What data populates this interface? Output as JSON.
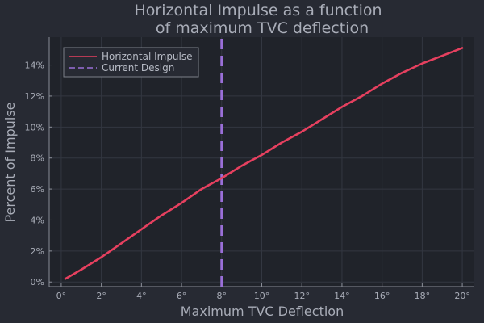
{
  "chart_data": {
    "type": "line",
    "title_lines": [
      "Horizontal Impulse as a function",
      "of maximum TVC deflection"
    ],
    "xlabel": "Maximum TVC Deflection",
    "ylabel": "Percent of Impulse",
    "xlim": [
      -0.6,
      20.6
    ],
    "ylim": [
      -0.3,
      15.8
    ],
    "xticks": [
      0,
      2,
      4,
      6,
      8,
      10,
      12,
      14,
      16,
      18,
      20
    ],
    "xtick_labels": [
      "0°",
      "2°",
      "4°",
      "6°",
      "8°",
      "10°",
      "12°",
      "14°",
      "16°",
      "18°",
      "20°"
    ],
    "yticks": [
      0,
      2,
      4,
      6,
      8,
      10,
      12,
      14
    ],
    "ytick_labels": [
      "0%",
      "2%",
      "4%",
      "6%",
      "8%",
      "10%",
      "12%",
      "14%"
    ],
    "grid": true,
    "legend_position": "top-left",
    "series": [
      {
        "name": "Horizontal Impulse",
        "style": "solid",
        "color": "#e6405f",
        "x": [
          0.2,
          1,
          2,
          3,
          4,
          5,
          6,
          7,
          8,
          9,
          10,
          11,
          12,
          13,
          14,
          15,
          16,
          17,
          18,
          19,
          20
        ],
        "y": [
          0.2,
          0.8,
          1.6,
          2.5,
          3.4,
          4.3,
          5.1,
          6.0,
          6.7,
          7.5,
          8.2,
          9.0,
          9.7,
          10.5,
          11.3,
          12.0,
          12.8,
          13.5,
          14.1,
          14.6,
          15.1
        ]
      },
      {
        "name": "Current Design",
        "style": "dashed",
        "color": "#9a6fd8",
        "x": [
          8,
          8
        ],
        "y": [
          -0.3,
          15.8
        ]
      }
    ]
  }
}
